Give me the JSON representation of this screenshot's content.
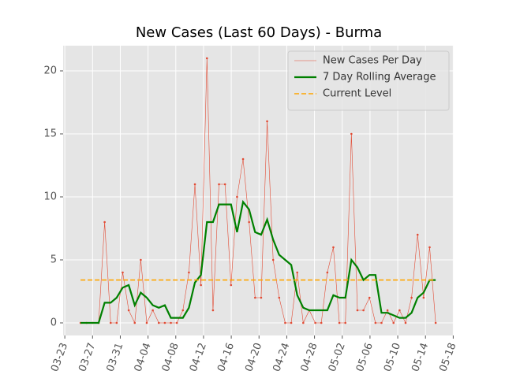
{
  "chart_data": {
    "type": "line",
    "title": "New Cases (Last 60 Days) - Burma",
    "x": [
      0,
      1,
      2,
      3,
      4,
      5,
      6,
      7,
      8,
      9,
      10,
      11,
      12,
      13,
      14,
      15,
      16,
      17,
      18,
      19,
      20,
      21,
      22,
      23,
      24,
      25,
      26,
      27,
      28,
      29,
      30,
      31,
      32,
      33,
      34,
      35,
      36,
      37,
      38,
      39,
      40,
      41,
      42,
      43,
      44,
      45,
      46,
      47,
      48,
      49,
      50,
      51,
      52,
      53,
      54,
      55,
      56,
      57,
      58,
      59
    ],
    "series": [
      {
        "name": "New Cases Per Day",
        "color": "#e24a33",
        "style": "thin-markers",
        "values": [
          0,
          0,
          0,
          0,
          8,
          0,
          0,
          4,
          1,
          0,
          5,
          0,
          1,
          0,
          0,
          0,
          0,
          1,
          4,
          11,
          3,
          21,
          1,
          11,
          11,
          3,
          10,
          13,
          8,
          2,
          2,
          16,
          5,
          2,
          0,
          0,
          4,
          0,
          1,
          0,
          0,
          4,
          6,
          0,
          0,
          15,
          1,
          1,
          2,
          0,
          0,
          1,
          0,
          1,
          0,
          2,
          7,
          2,
          6,
          0
        ]
      },
      {
        "name": "7 Day Rolling Average",
        "color": "green",
        "style": "thick",
        "values": [
          0,
          0,
          0,
          0,
          1.6,
          1.6,
          2,
          2.8,
          3,
          1.4,
          2.4,
          2,
          1.4,
          1.2,
          1.4,
          0.4,
          0.4,
          0.4,
          1.2,
          3.2,
          3.8,
          8,
          8,
          9.4,
          9.4,
          9.4,
          7.2,
          9.6,
          9,
          7.2,
          7,
          8.2,
          6.6,
          5.4,
          5,
          4.6,
          2.2,
          1.2,
          1,
          1,
          1,
          1,
          2.2,
          2,
          2,
          5,
          4.4,
          3.4,
          3.8,
          3.8,
          0.8,
          0.8,
          0.6,
          0.4,
          0.4,
          0.8,
          2,
          2.4,
          3.4,
          3.4
        ]
      }
    ],
    "hline": {
      "name": "Current Level",
      "color": "orange",
      "value": 3.4
    },
    "xlim": [
      -2.9,
      62.0
    ],
    "xticks": [
      {
        "value": -2.62,
        "label": "03-23"
      },
      {
        "value": 1.99,
        "label": "03-27"
      },
      {
        "value": 6.6,
        "label": "03-31"
      },
      {
        "value": 11.21,
        "label": "04-04"
      },
      {
        "value": 15.82,
        "label": "04-08"
      },
      {
        "value": 20.43,
        "label": "04-12"
      },
      {
        "value": 25.04,
        "label": "04-16"
      },
      {
        "value": 29.65,
        "label": "04-20"
      },
      {
        "value": 34.26,
        "label": "04-24"
      },
      {
        "value": 38.87,
        "label": "04-28"
      },
      {
        "value": 43.48,
        "label": "05-02"
      },
      {
        "value": 48.09,
        "label": "05-06"
      },
      {
        "value": 52.7,
        "label": "05-10"
      },
      {
        "value": 57.31,
        "label": "05-14"
      },
      {
        "value": 61.92,
        "label": "05-18"
      }
    ],
    "ylim": [
      -1,
      22
    ],
    "yticks": [
      0,
      5,
      10,
      15,
      20
    ],
    "grid": true,
    "legend": "upper right"
  }
}
